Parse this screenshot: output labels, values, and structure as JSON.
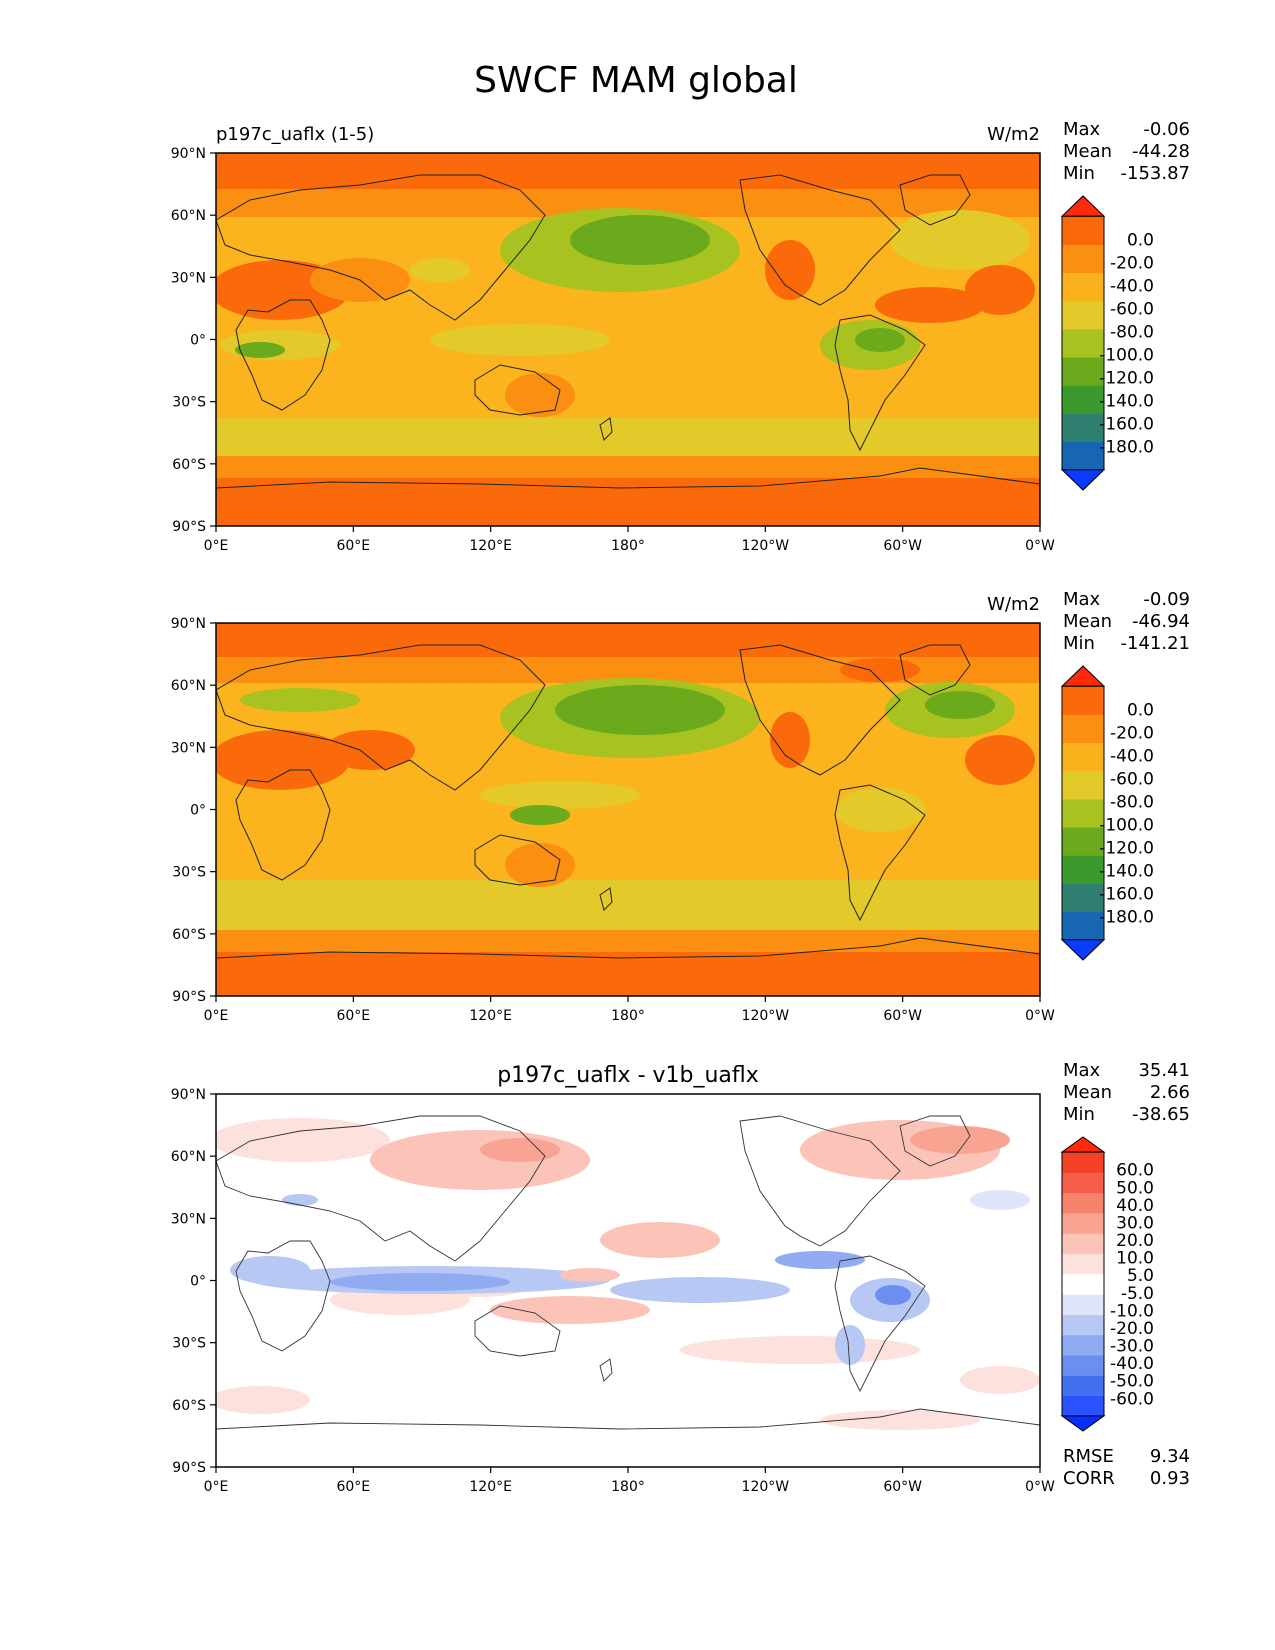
{
  "title": "SWCF MAM global",
  "lat_labels": [
    "90°N",
    "60°N",
    "30°N",
    "0°",
    "30°S",
    "60°S",
    "90°S"
  ],
  "lon_labels": [
    "0°E",
    "60°E",
    "120°E",
    "180°",
    "120°W",
    "60°W",
    "0°W"
  ],
  "panels": [
    {
      "left_title": "p197c_uaflx (1-5)",
      "center_title": "",
      "units": "W/m2",
      "stats": [
        {
          "label": "Max",
          "value": "-0.06"
        },
        {
          "label": "Mean",
          "value": "-44.28"
        },
        {
          "label": "Min",
          "value": "-153.87"
        }
      ],
      "colorbar": {
        "colors": [
          "#0b3bff",
          "#1766b4",
          "#2f7f70",
          "#3a9a2d",
          "#6aaa1c",
          "#a8c21f",
          "#e4c92b",
          "#f9b21b",
          "#fb8f12",
          "#fb6a0a",
          "#ff2a0a"
        ],
        "labels": [
          "0.0",
          "-20.0",
          "-40.0",
          "-60.0",
          "-80.0",
          "-100.0",
          "-120.0",
          "-140.0",
          "-160.0",
          "-180.0"
        ]
      }
    },
    {
      "left_title": "",
      "center_title": "",
      "units": "W/m2",
      "stats": [
        {
          "label": "Max",
          "value": "-0.09"
        },
        {
          "label": "Mean",
          "value": "-46.94"
        },
        {
          "label": "Min",
          "value": "-141.21"
        }
      ],
      "colorbar": {
        "colors": [
          "#0b3bff",
          "#1766b4",
          "#2f7f70",
          "#3a9a2d",
          "#6aaa1c",
          "#a8c21f",
          "#e4c92b",
          "#f9b21b",
          "#fb8f12",
          "#fb6a0a",
          "#ff2a0a"
        ],
        "labels": [
          "0.0",
          "-20.0",
          "-40.0",
          "-60.0",
          "-80.0",
          "-100.0",
          "-120.0",
          "-140.0",
          "-160.0",
          "-180.0"
        ]
      }
    },
    {
      "left_title": "",
      "center_title": "p197c_uaflx - v1b_uaflx",
      "units": "",
      "stats": [
        {
          "label": "Max",
          "value": "35.41"
        },
        {
          "label": "Mean",
          "value": "2.66"
        },
        {
          "label": "Min",
          "value": "-38.65"
        }
      ],
      "bottom_stats": [
        {
          "label": "RMSE",
          "value": "9.34"
        },
        {
          "label": "CORR",
          "value": "0.93"
        }
      ],
      "colorbar": {
        "colors": [
          "#0a2cff",
          "#2a52ff",
          "#4470f0",
          "#6b8ff0",
          "#90abf2",
          "#b8c8f5",
          "#dfe5fa",
          "#ffffff",
          "#fde1dc",
          "#fcc4b9",
          "#f9a393",
          "#f7826c",
          "#f55e48",
          "#f34126",
          "#ff2a0a"
        ],
        "labels": [
          "60.0",
          "50.0",
          "40.0",
          "30.0",
          "20.0",
          "10.0",
          "5.0",
          "-5.0",
          "-10.0",
          "-20.0",
          "-30.0",
          "-40.0",
          "-50.0",
          "-60.0"
        ]
      }
    }
  ]
}
